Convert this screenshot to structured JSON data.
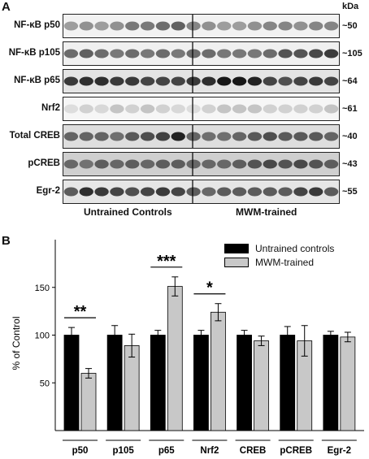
{
  "panels": {
    "a": "A",
    "b": "B"
  },
  "blot": {
    "units_label": "kDa",
    "rows": [
      {
        "label": "NF-κB p50",
        "kda": "~50",
        "bg": "#f2f2f2",
        "alphas": [
          0.35,
          0.4,
          0.35,
          0.4,
          0.5,
          0.5,
          0.55,
          0.6,
          0.45,
          0.4,
          0.35,
          0.35,
          0.4,
          0.45,
          0.45,
          0.4,
          0.45,
          0.45
        ]
      },
      {
        "label": "NF-κB p105",
        "kda": "~105",
        "bg": "#f0f0f0",
        "alphas": [
          0.55,
          0.6,
          0.55,
          0.5,
          0.55,
          0.5,
          0.55,
          0.5,
          0.55,
          0.55,
          0.5,
          0.5,
          0.5,
          0.55,
          0.65,
          0.65,
          0.7,
          0.75
        ]
      },
      {
        "label": "NF-κB p65",
        "kda": "~64",
        "bg": "#e4e4e4",
        "alphas": [
          0.75,
          0.8,
          0.8,
          0.75,
          0.75,
          0.7,
          0.7,
          0.7,
          0.75,
          0.8,
          0.9,
          0.9,
          0.85,
          0.7,
          0.65,
          0.7,
          0.75,
          0.7
        ]
      },
      {
        "label": "Nrf2",
        "kda": "~61",
        "bg": "#f6f6f6",
        "alphas": [
          0.1,
          0.15,
          0.12,
          0.2,
          0.15,
          0.2,
          0.15,
          0.12,
          0.1,
          0.15,
          0.2,
          0.2,
          0.2,
          0.15,
          0.15,
          0.15,
          0.15,
          0.2
        ]
      },
      {
        "label": "Total CREB",
        "kda": "~40",
        "bg": "#dedede",
        "alphas": [
          0.55,
          0.55,
          0.55,
          0.5,
          0.6,
          0.65,
          0.7,
          0.85,
          0.55,
          0.5,
          0.5,
          0.55,
          0.6,
          0.65,
          0.6,
          0.6,
          0.6,
          0.55
        ]
      },
      {
        "label": "pCREB",
        "kda": "~43",
        "bg": "#cfcfcf",
        "alphas": [
          0.5,
          0.45,
          0.55,
          0.5,
          0.55,
          0.5,
          0.55,
          0.55,
          0.5,
          0.5,
          0.5,
          0.55,
          0.6,
          0.65,
          0.6,
          0.65,
          0.6,
          0.55
        ]
      },
      {
        "label": "Egr-2",
        "kda": "~55",
        "bg": "#e6e6e6",
        "alphas": [
          0.6,
          0.8,
          0.75,
          0.7,
          0.65,
          0.7,
          0.75,
          0.7,
          0.6,
          0.55,
          0.6,
          0.6,
          0.6,
          0.6,
          0.6,
          0.7,
          0.75,
          0.6
        ]
      }
    ],
    "groups": [
      "Untrained Controls",
      "MWM-trained"
    ]
  },
  "chart_data": {
    "type": "bar",
    "ylabel": "% of Control",
    "ylim": [
      0,
      200
    ],
    "yticks": [
      50,
      100,
      150
    ],
    "categories": [
      "p50",
      "p105",
      "p65",
      "Nrf2",
      "CREB",
      "pCREB",
      "Egr-2"
    ],
    "series": [
      {
        "name": "Untrained controls",
        "color": "#000000",
        "values": [
          100,
          100,
          100,
          100,
          100,
          100,
          100
        ],
        "errors": [
          8,
          10,
          5,
          5,
          5,
          9,
          4
        ]
      },
      {
        "name": "MWM-trained",
        "color": "#c8c8c8",
        "values": [
          60,
          89,
          151,
          124,
          94,
          94,
          98
        ],
        "errors": [
          5,
          12,
          10,
          9,
          5,
          16,
          5
        ]
      }
    ],
    "significance": [
      {
        "category": "p50",
        "label": "**"
      },
      {
        "category": "p65",
        "label": "***"
      },
      {
        "category": "Nrf2",
        "label": "*"
      }
    ]
  }
}
